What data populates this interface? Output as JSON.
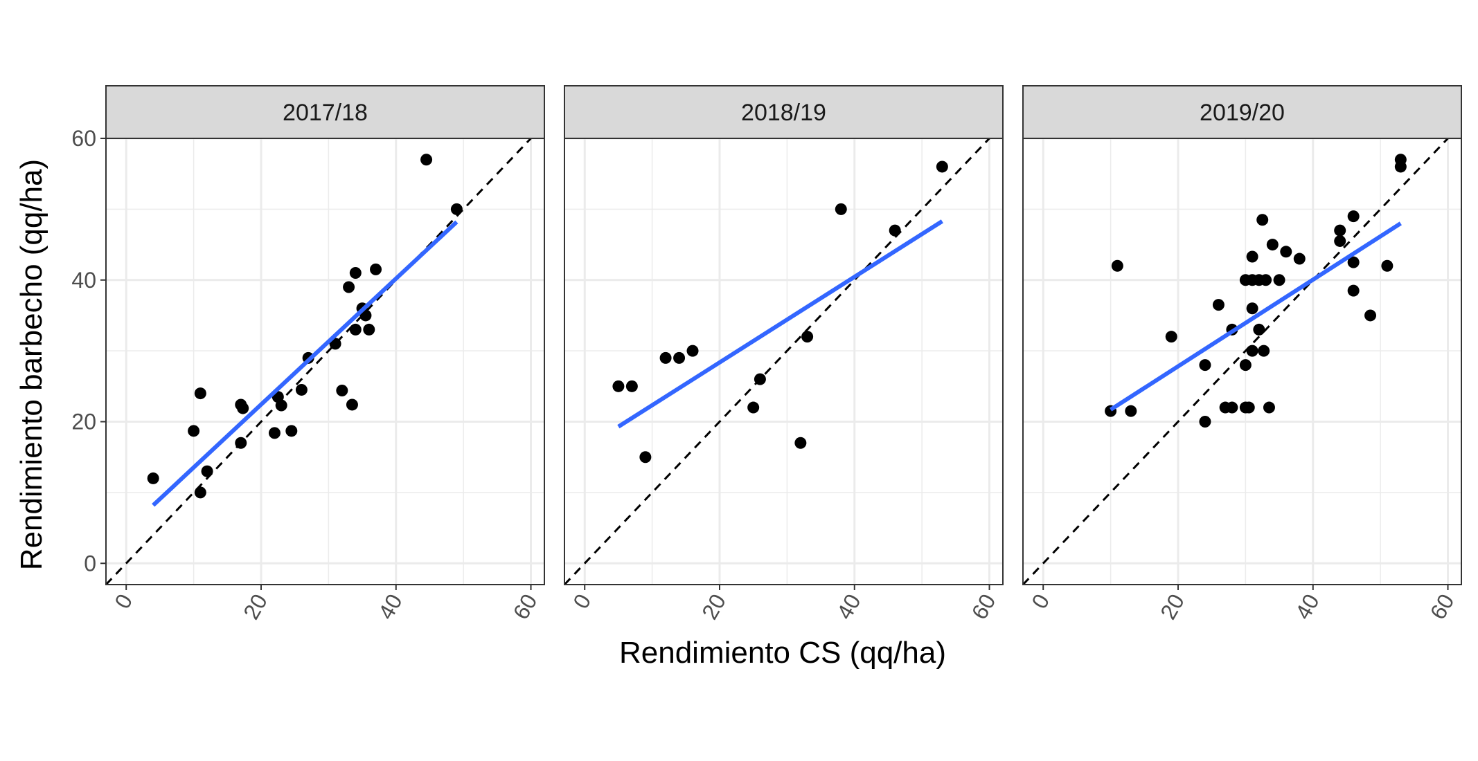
{
  "chart_data": {
    "type": "scatter",
    "xlabel": "Rendimiento CS (qq/ha)",
    "ylabel": "Rendimiento barbecho (qq/ha)",
    "xlim": [
      -3,
      62
    ],
    "ylim": [
      -3,
      60
    ],
    "x_ticks": [
      0,
      20,
      40,
      60
    ],
    "y_ticks": [
      0,
      20,
      40,
      60
    ],
    "grid": true,
    "reference_line": "y = x (dashed)",
    "panels": [
      {
        "label": "2017/18",
        "points": [
          [
            4,
            12
          ],
          [
            10,
            18.7
          ],
          [
            11,
            24
          ],
          [
            11,
            10
          ],
          [
            12,
            13
          ],
          [
            17,
            22.4
          ],
          [
            17.3,
            21.9
          ],
          [
            17,
            17
          ],
          [
            22,
            18.4
          ],
          [
            22.5,
            23.5
          ],
          [
            23,
            22.3
          ],
          [
            24.5,
            18.7
          ],
          [
            26,
            24.5
          ],
          [
            27,
            29
          ],
          [
            31,
            31
          ],
          [
            32,
            24.4
          ],
          [
            33,
            39
          ],
          [
            33.5,
            22.4
          ],
          [
            34,
            41
          ],
          [
            34,
            33
          ],
          [
            35,
            36
          ],
          [
            35.5,
            35
          ],
          [
            36,
            33
          ],
          [
            37,
            41.5
          ],
          [
            44.5,
            57
          ],
          [
            49,
            50
          ]
        ],
        "fit": {
          "x": [
            4,
            49
          ],
          "y": [
            8.2,
            48.2
          ]
        }
      },
      {
        "label": "2018/19",
        "points": [
          [
            5,
            25
          ],
          [
            7,
            25
          ],
          [
            9,
            15
          ],
          [
            12,
            29
          ],
          [
            14,
            29
          ],
          [
            16,
            30
          ],
          [
            25,
            22
          ],
          [
            26,
            26
          ],
          [
            32,
            17
          ],
          [
            33,
            32
          ],
          [
            38,
            50
          ],
          [
            46,
            47
          ],
          [
            53,
            56
          ]
        ],
        "fit": {
          "x": [
            5,
            53
          ],
          "y": [
            19.3,
            48.3
          ]
        }
      },
      {
        "label": "2019/20",
        "points": [
          [
            10,
            21.5
          ],
          [
            11,
            42
          ],
          [
            13,
            21.5
          ],
          [
            19,
            32
          ],
          [
            24,
            20
          ],
          [
            24,
            28
          ],
          [
            26,
            36.5
          ],
          [
            27,
            22
          ],
          [
            28,
            33
          ],
          [
            28,
            22
          ],
          [
            30,
            22
          ],
          [
            30,
            28
          ],
          [
            30,
            40
          ],
          [
            30.5,
            22
          ],
          [
            31,
            43.3
          ],
          [
            31,
            40
          ],
          [
            31,
            36
          ],
          [
            31,
            30
          ],
          [
            32,
            33
          ],
          [
            32,
            40
          ],
          [
            32.5,
            48.5
          ],
          [
            32.7,
            30
          ],
          [
            33,
            40
          ],
          [
            33.5,
            22
          ],
          [
            34,
            45
          ],
          [
            35,
            40
          ],
          [
            36,
            44
          ],
          [
            38,
            43
          ],
          [
            44,
            47
          ],
          [
            44,
            45.5
          ],
          [
            46,
            49
          ],
          [
            46,
            42.5
          ],
          [
            46,
            38.5
          ],
          [
            48.5,
            35
          ],
          [
            51,
            42
          ],
          [
            53,
            57
          ],
          [
            53,
            56
          ]
        ],
        "fit": {
          "x": [
            10,
            53
          ],
          "y": [
            21.7,
            48
          ]
        }
      }
    ],
    "colors": {
      "points": "#000000",
      "fit_line": "#3366ff",
      "reference_line": "#000000",
      "strip_background": "#d9d9d9",
      "grid": "#ebebeb",
      "panel_border": "#333333"
    }
  }
}
